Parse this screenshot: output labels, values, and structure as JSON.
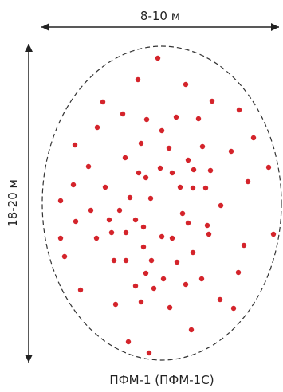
{
  "diagram": {
    "width_label": "8-10 м",
    "height_label": "18-20 м",
    "caption": "ПФМ-1 (ПФМ-1С)"
  },
  "colors": {
    "dot": "#d4242b",
    "outline": "#333333",
    "arrow": "#222222",
    "text": "#222222"
  }
}
